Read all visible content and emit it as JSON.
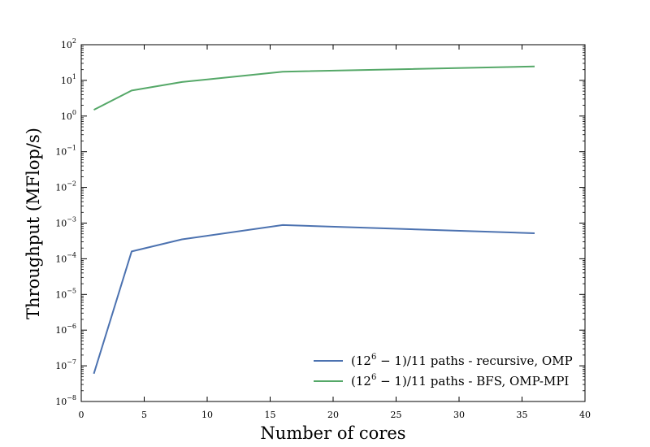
{
  "chart_data": {
    "type": "line",
    "xlabel": "Number of cores",
    "ylabel": "Throughput (MFlop/s)",
    "xlim": [
      0,
      40
    ],
    "ylim": [
      1e-08,
      100
    ],
    "yscale": "log",
    "grid": false,
    "legend_position": "lower-right",
    "x_ticks": [
      0,
      5,
      10,
      15,
      20,
      25,
      30,
      35,
      40
    ],
    "y_tick_exponents": [
      -8,
      -7,
      -6,
      -5,
      -4,
      -3,
      -2,
      -1,
      0,
      1,
      2
    ],
    "series": [
      {
        "name": "(12^6 − 1)/11 paths - recursive, OMP",
        "legend_prefix": "(12",
        "legend_sup": "6",
        "legend_suffix": " − 1)/11 paths - recursive, OMP",
        "color": "#4c72b0",
        "x": [
          1,
          4,
          8,
          16,
          36
        ],
        "y": [
          6e-08,
          0.00016,
          0.00035,
          0.00088,
          0.00052
        ]
      },
      {
        "name": "(12^6 − 1)/11 paths - BFS, OMP-MPI",
        "legend_prefix": "(12",
        "legend_sup": "6",
        "legend_suffix": " − 1)/11 paths - BFS, OMP-MPI",
        "color": "#55a868",
        "x": [
          1,
          4,
          8,
          16,
          36
        ],
        "y": [
          1.5,
          5.2,
          9.0,
          17.5,
          24.5
        ]
      }
    ]
  }
}
